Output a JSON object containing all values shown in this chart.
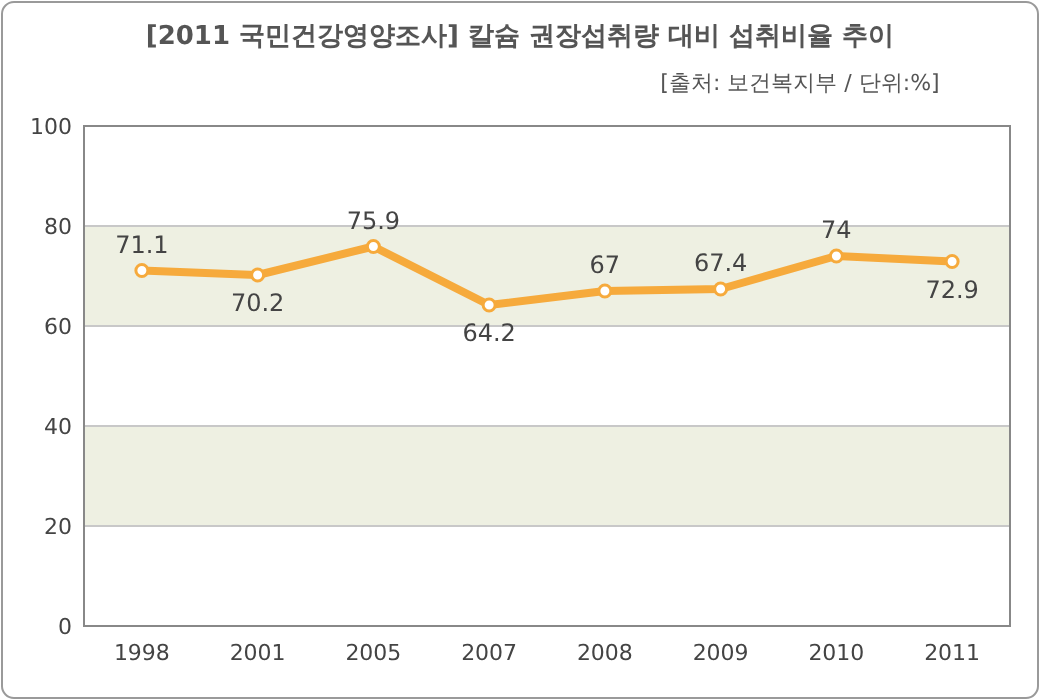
{
  "chart_data": {
    "type": "line",
    "title": "[2011 국민건강영양조사] 칼슘 권장섭취량 대비 섭취비율 추이",
    "subtitle": "[출처: 보건복지부 / 단위:%]",
    "categories": [
      "1998",
      "2001",
      "2005",
      "2007",
      "2008",
      "2009",
      "2010",
      "2011"
    ],
    "series": [
      {
        "color": "#f6aa3c",
        "values": [
          71.1,
          70.2,
          75.9,
          64.2,
          67,
          67.4,
          74,
          72.9
        ]
      }
    ],
    "ylim": [
      0,
      100
    ],
    "yticks": [
      0,
      20,
      40,
      60,
      80,
      100
    ],
    "bands": [
      {
        "axis": "y",
        "from": 20,
        "to": 40,
        "color": "#eef0e2"
      },
      {
        "axis": "y",
        "from": 60,
        "to": 80,
        "color": "#eef0e2"
      }
    ],
    "grid": "y",
    "marker": "circle",
    "line_style": "solid",
    "data_labels": true
  }
}
